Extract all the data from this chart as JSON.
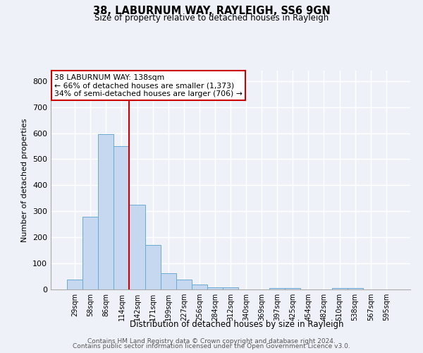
{
  "title": "38, LABURNUM WAY, RAYLEIGH, SS6 9GN",
  "subtitle": "Size of property relative to detached houses in Rayleigh",
  "xlabel": "Distribution of detached houses by size in Rayleigh",
  "ylabel": "Number of detached properties",
  "bar_labels": [
    "29sqm",
    "58sqm",
    "86sqm",
    "114sqm",
    "142sqm",
    "171sqm",
    "199sqm",
    "227sqm",
    "256sqm",
    "284sqm",
    "312sqm",
    "340sqm",
    "369sqm",
    "397sqm",
    "425sqm",
    "454sqm",
    "482sqm",
    "510sqm",
    "538sqm",
    "567sqm",
    "595sqm"
  ],
  "bar_values": [
    38,
    278,
    595,
    551,
    325,
    170,
    63,
    38,
    20,
    8,
    8,
    0,
    0,
    5,
    5,
    0,
    0,
    5,
    5,
    0,
    0
  ],
  "bar_color": "#c5d8f0",
  "bar_edge_color": "#6aaad4",
  "vline_x_index": 4,
  "vline_color": "#cc0000",
  "annotation_text": "38 LABURNUM WAY: 138sqm\n← 66% of detached houses are smaller (1,373)\n34% of semi-detached houses are larger (706) →",
  "annotation_box_color": "#ffffff",
  "annotation_box_edge_color": "#cc0000",
  "ylim": [
    0,
    840
  ],
  "yticks": [
    0,
    100,
    200,
    300,
    400,
    500,
    600,
    700,
    800
  ],
  "background_color": "#eef2f8",
  "grid_color": "#ffffff",
  "footer_line1": "Contains HM Land Registry data © Crown copyright and database right 2024.",
  "footer_line2": "Contains public sector information licensed under the Open Government Licence v3.0."
}
